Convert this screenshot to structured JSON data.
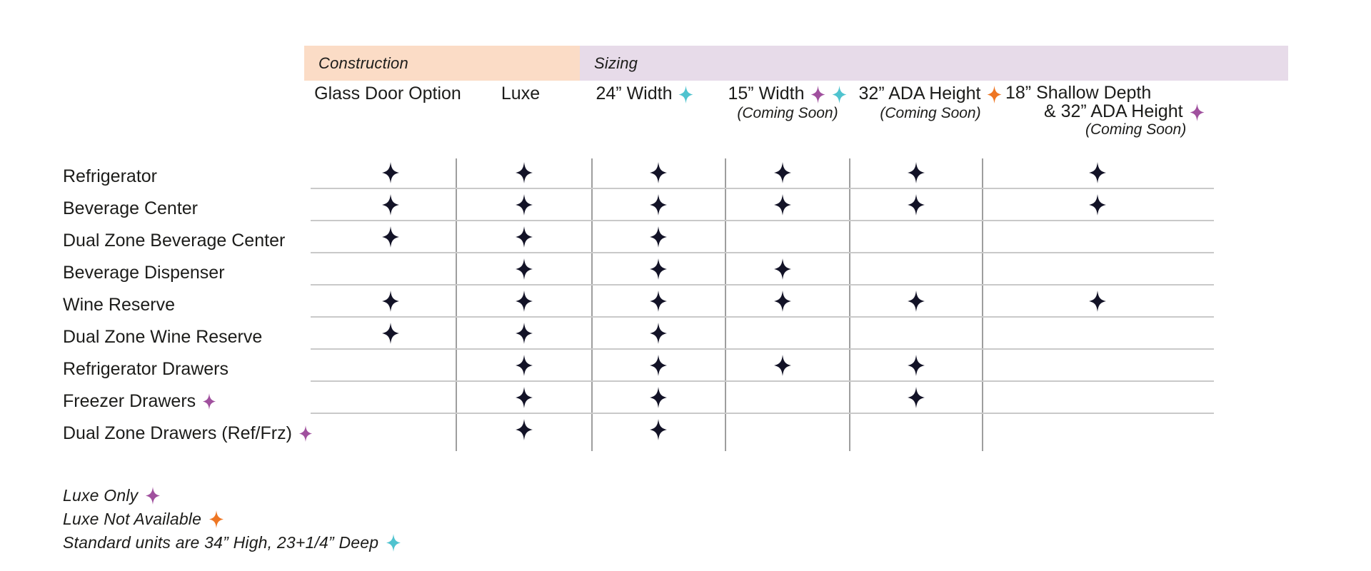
{
  "chart_data": {
    "type": "table",
    "title": "Product feature and sizing availability matrix",
    "column_groups": [
      {
        "label": "Construction",
        "bg": "#fbdcc6",
        "columns": [
          0,
          1
        ]
      },
      {
        "label": "Sizing",
        "bg": "#e7dbe9",
        "columns": [
          2,
          3,
          4,
          5
        ]
      }
    ],
    "columns": [
      {
        "label": "Glass Door Option",
        "diamonds": [],
        "note": ""
      },
      {
        "label": "Luxe",
        "diamonds": [],
        "note": ""
      },
      {
        "label": "24” Width",
        "diamonds": [
          "teal"
        ],
        "note": ""
      },
      {
        "label": "15” Width",
        "diamonds": [
          "purple",
          "teal"
        ],
        "note": "(Coming Soon)"
      },
      {
        "label": "32” ADA Height",
        "diamonds": [
          "orange"
        ],
        "note": "(Coming Soon)"
      },
      {
        "label": "18” Shallow Depth",
        "label2": "& 32” ADA Height",
        "diamonds": [
          "purple"
        ],
        "note": "(Coming Soon)"
      }
    ],
    "rows": [
      {
        "label": "Refrigerator",
        "label_marker": null,
        "cells": [
          1,
          1,
          1,
          1,
          1,
          1
        ]
      },
      {
        "label": "Beverage Center",
        "label_marker": null,
        "cells": [
          1,
          1,
          1,
          1,
          1,
          1
        ]
      },
      {
        "label": "Dual Zone Beverage Center",
        "label_marker": null,
        "cells": [
          1,
          1,
          1,
          0,
          0,
          0
        ]
      },
      {
        "label": "Beverage Dispenser",
        "label_marker": null,
        "cells": [
          0,
          1,
          1,
          1,
          0,
          0
        ]
      },
      {
        "label": "Wine Reserve",
        "label_marker": null,
        "cells": [
          1,
          1,
          1,
          1,
          1,
          1
        ]
      },
      {
        "label": "Dual Zone Wine Reserve",
        "label_marker": null,
        "cells": [
          1,
          1,
          1,
          0,
          0,
          0
        ]
      },
      {
        "label": "Refrigerator Drawers",
        "label_marker": null,
        "cells": [
          0,
          1,
          1,
          1,
          1,
          0
        ]
      },
      {
        "label": "Freezer Drawers",
        "label_marker": "purple",
        "cells": [
          0,
          1,
          1,
          0,
          1,
          0
        ]
      },
      {
        "label": "Dual Zone Drawers (Ref/Frz)",
        "label_marker": "purple",
        "cells": [
          0,
          1,
          1,
          0,
          0,
          0
        ]
      }
    ],
    "legend": [
      {
        "text": "Luxe Only",
        "diamond": "purple"
      },
      {
        "text": "Luxe Not Available",
        "diamond": "orange"
      },
      {
        "text": "Standard units are 34” High, 23+1/4” Deep",
        "diamond": "teal"
      }
    ],
    "marker_colors": {
      "feature": "#131327",
      "purple": "#a0509e",
      "teal": "#4fc3cf",
      "orange": "#ee7623"
    },
    "layout_hints": {
      "grid": "horizontal rules under first 8 rows, vertical rules between availability columns",
      "legend_position": "bottom-left"
    }
  }
}
